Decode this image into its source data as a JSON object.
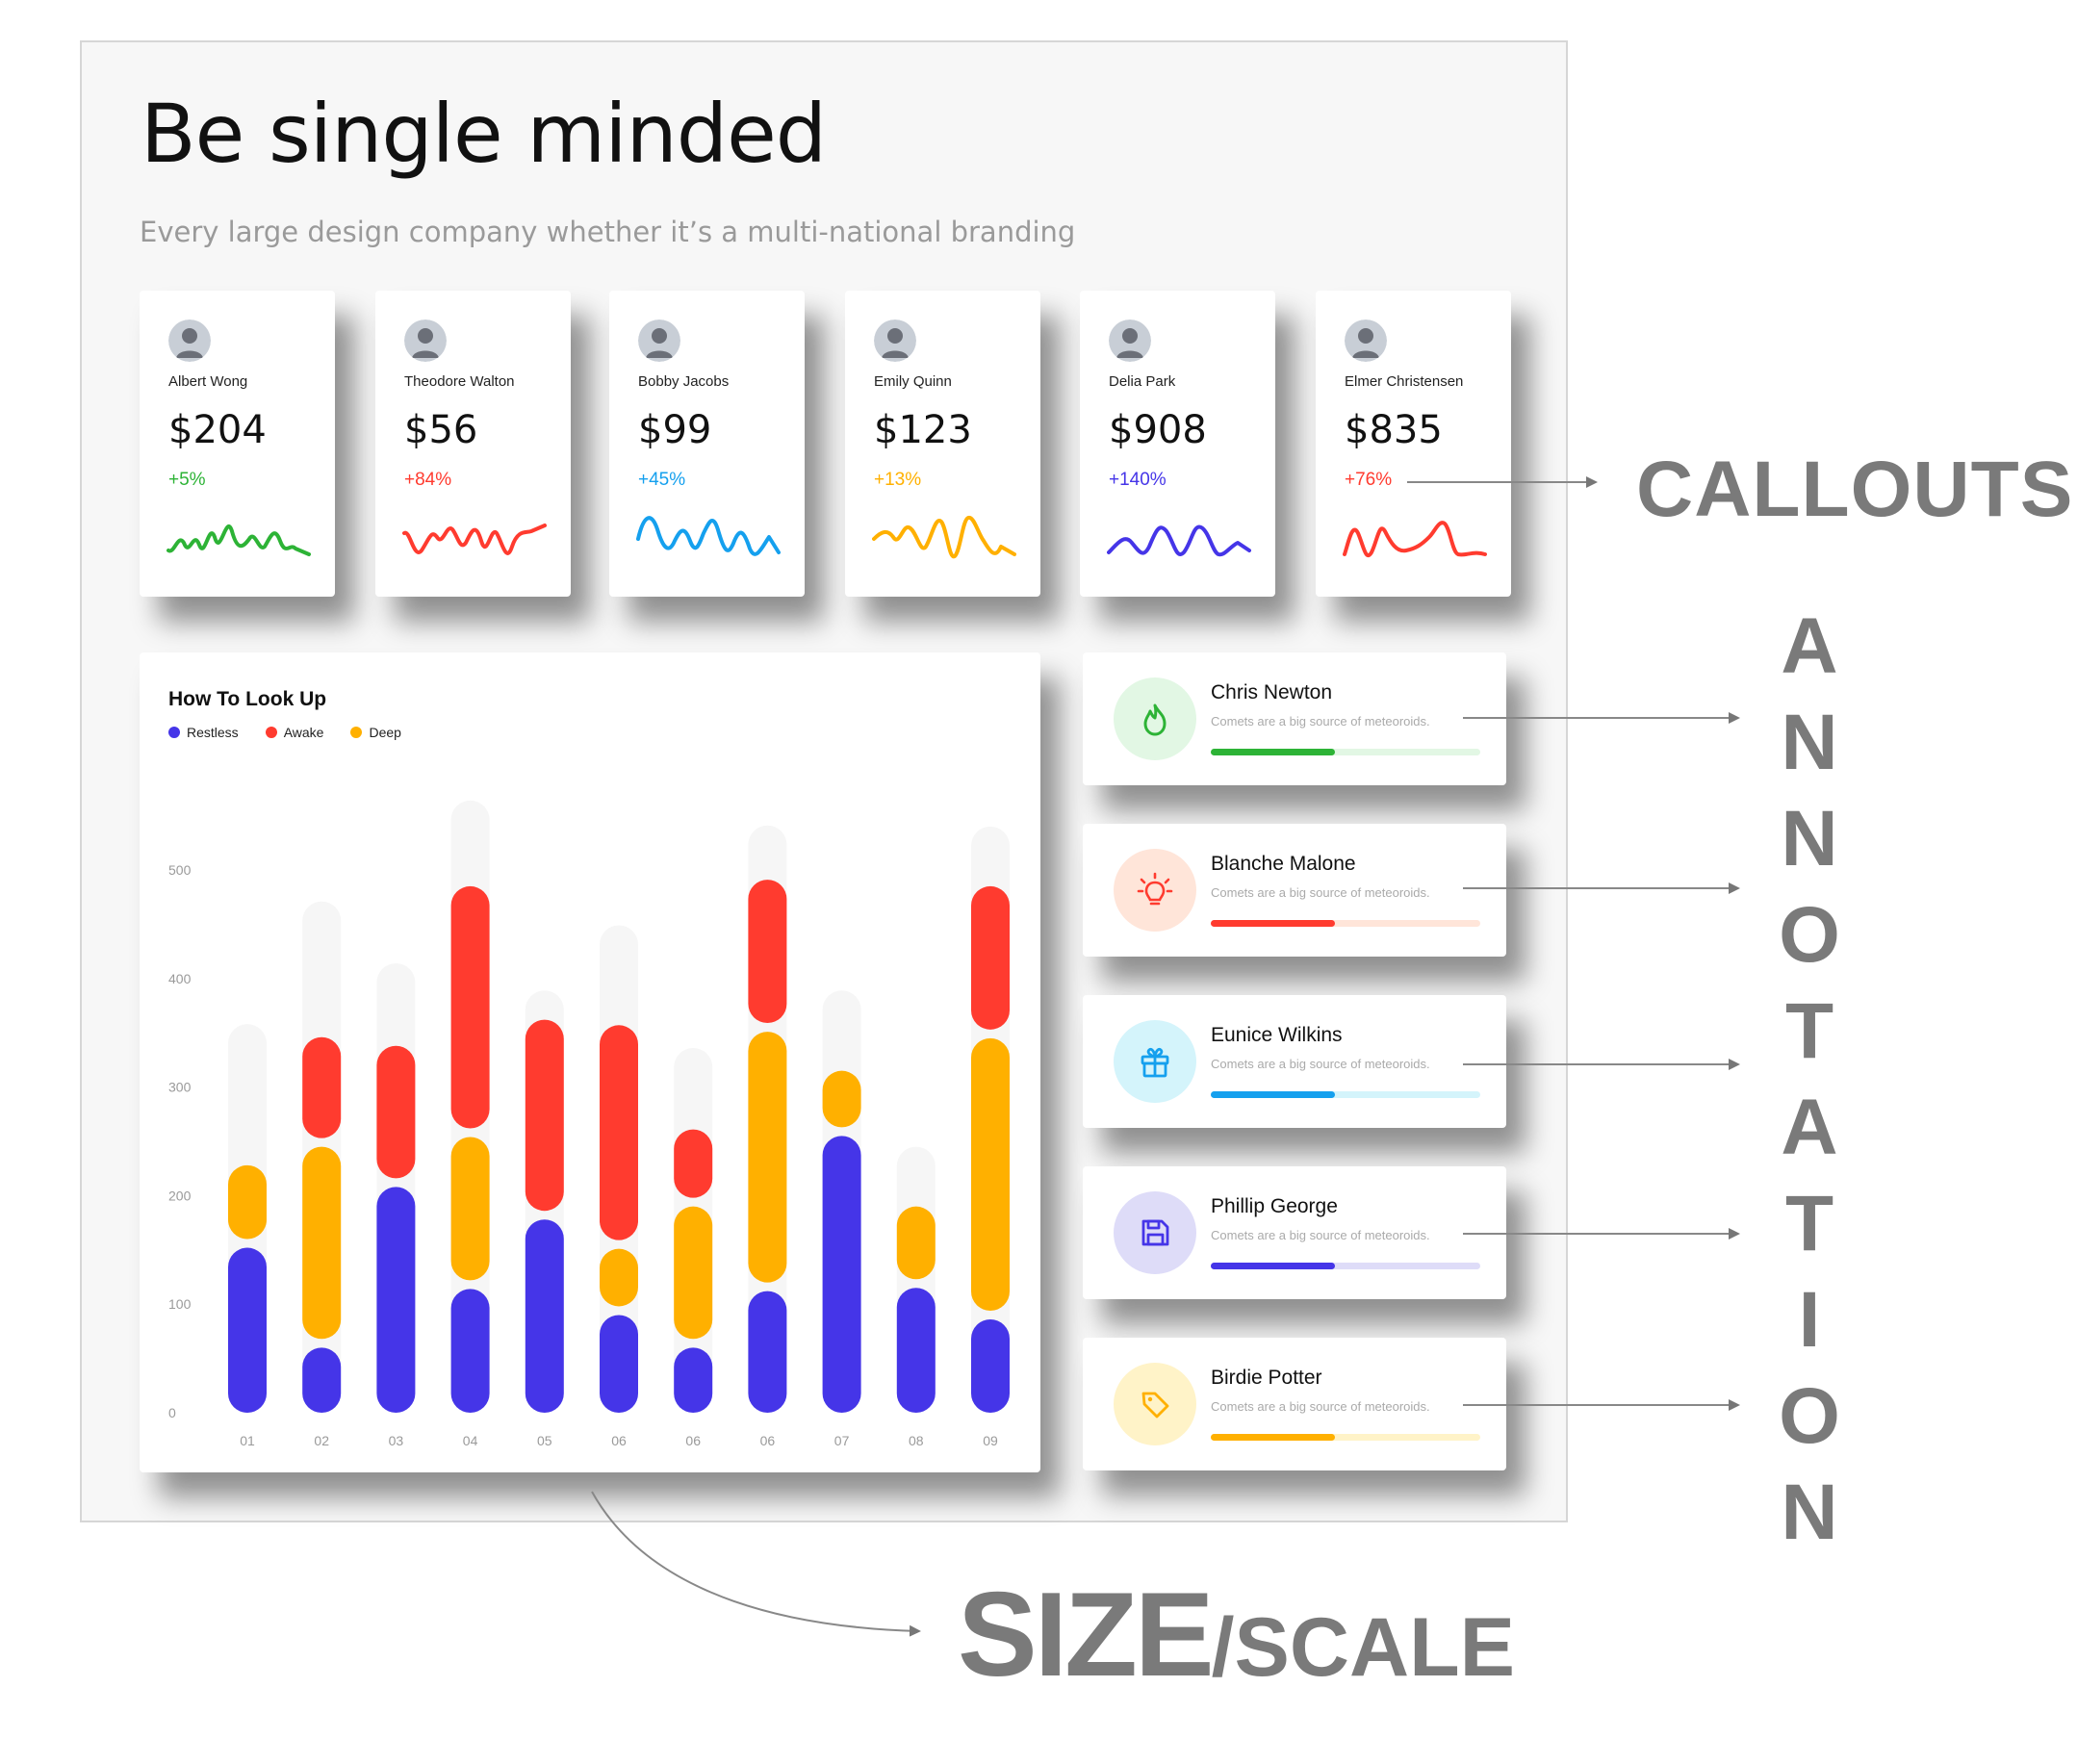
{
  "header": {
    "title": "Be single minded",
    "subtitle": "Every large design company whether it’s a multi-national branding"
  },
  "stat_cards": [
    {
      "name": "Albert Wong",
      "value": "$204",
      "change": "+5%",
      "color": "#2db336",
      "avatar_icon": "person-avatar"
    },
    {
      "name": "Theodore Walton",
      "value": "$56",
      "change": "+84%",
      "color": "#ff3b2f",
      "avatar_icon": "person-avatar"
    },
    {
      "name": "Bobby Jacobs",
      "value": "$99",
      "change": "+45%",
      "color": "#15a0ee",
      "avatar_icon": "person-avatar"
    },
    {
      "name": "Emily Quinn",
      "value": "$123",
      "change": "+13%",
      "color": "#ffb000",
      "avatar_icon": "person-avatar"
    },
    {
      "name": "Delia Park",
      "value": "$908",
      "change": "+140%",
      "color": "#4535e8",
      "avatar_icon": "person-avatar"
    },
    {
      "name": "Elmer Christensen",
      "value": "$835",
      "change": "+76%",
      "color": "#ff3b2f",
      "avatar_icon": "person-avatar"
    }
  ],
  "chart_data": {
    "type": "bar",
    "title": "How To Look Up",
    "legend": [
      {
        "name": "Restless",
        "color": "#4535e8"
      },
      {
        "name": "Awake",
        "color": "#ff3b2f"
      },
      {
        "name": "Deep",
        "color": "#ffb000"
      }
    ],
    "y_ticks": [
      "500",
      "400",
      "300",
      "200",
      "100",
      "0"
    ],
    "ylim": [
      0,
      500
    ],
    "categories": [
      "01",
      "02",
      "03",
      "04",
      "05",
      "06",
      "06",
      "06",
      "07",
      "08",
      "09"
    ],
    "segments": [
      [
        {
          "series": "Restless",
          "from": 0,
          "to": 152
        },
        {
          "series": "Deep",
          "from": 160,
          "to": 228
        }
      ],
      [
        {
          "series": "Restless",
          "from": 0,
          "to": 60
        },
        {
          "series": "Deep",
          "from": 68,
          "to": 245
        },
        {
          "series": "Awake",
          "from": 253,
          "to": 346
        }
      ],
      [
        {
          "series": "Restless",
          "from": 0,
          "to": 208
        },
        {
          "series": "Awake",
          "from": 216,
          "to": 338
        }
      ],
      [
        {
          "series": "Restless",
          "from": 0,
          "to": 114
        },
        {
          "series": "Deep",
          "from": 122,
          "to": 254
        },
        {
          "series": "Awake",
          "from": 262,
          "to": 485
        }
      ],
      [
        {
          "series": "Restless",
          "from": 0,
          "to": 178
        },
        {
          "series": "Awake",
          "from": 186,
          "to": 362
        }
      ],
      [
        {
          "series": "Restless",
          "from": 0,
          "to": 90
        },
        {
          "series": "Deep",
          "from": 98,
          "to": 151
        },
        {
          "series": "Awake",
          "from": 159,
          "to": 357
        }
      ],
      [
        {
          "series": "Restless",
          "from": 0,
          "to": 60
        },
        {
          "series": "Deep",
          "from": 68,
          "to": 190
        },
        {
          "series": "Awake",
          "from": 198,
          "to": 261
        }
      ],
      [
        {
          "series": "Restless",
          "from": 0,
          "to": 112
        },
        {
          "series": "Deep",
          "from": 120,
          "to": 351
        },
        {
          "series": "Awake",
          "from": 359,
          "to": 491
        }
      ],
      [
        {
          "series": "Restless",
          "from": 0,
          "to": 255
        },
        {
          "series": "Deep",
          "from": 263,
          "to": 315
        }
      ],
      [
        {
          "series": "Restless",
          "from": 0,
          "to": 115
        },
        {
          "series": "Deep",
          "from": 123,
          "to": 190
        }
      ],
      [
        {
          "series": "Restless",
          "from": 0,
          "to": 86
        },
        {
          "series": "Deep",
          "from": 94,
          "to": 345
        },
        {
          "series": "Awake",
          "from": 353,
          "to": 485
        }
      ]
    ],
    "background_max": [
      358,
      471,
      414,
      564,
      389,
      449,
      336,
      541,
      389,
      245,
      540
    ],
    "grid": false
  },
  "list_items": [
    {
      "name": "Chris Newton",
      "desc": "Comets are a big source of meteoroids.",
      "color": "#2db336",
      "track": "#e2f7e4",
      "icon_bg": "#e2f7e4",
      "progress": 0.46,
      "icon": "fire-icon"
    },
    {
      "name": "Blanche Malone",
      "desc": "Comets are a big source of meteoroids.",
      "color": "#ff3b2f",
      "track": "#ffe5d9",
      "icon_bg": "#ffe5d9",
      "progress": 0.46,
      "icon": "lightbulb-icon"
    },
    {
      "name": "Eunice Wilkins",
      "desc": "Comets are a big source of meteoroids.",
      "color": "#15a0ee",
      "track": "#d4f4fb",
      "icon_bg": "#d4f4fb",
      "progress": 0.46,
      "icon": "gift-icon"
    },
    {
      "name": "Phillip George",
      "desc": "Comets are a big source of meteoroids.",
      "color": "#4535e8",
      "track": "#dedcf8",
      "icon_bg": "#dedcf8",
      "progress": 0.46,
      "icon": "floppy-disk-icon"
    },
    {
      "name": "Birdie Potter",
      "desc": "Comets are a big source of meteoroids.",
      "color": "#ffb000",
      "track": "#fff3c8",
      "icon_bg": "#fff3c8",
      "progress": 0.46,
      "icon": "tag-icon"
    }
  ],
  "annotations": {
    "callouts": "CALLOUTS",
    "annotation_letters": [
      "A",
      "N",
      "N",
      "O",
      "T",
      "A",
      "T",
      "I",
      "O",
      "N"
    ],
    "size": "SIZE",
    "scale": "/SCALE"
  }
}
